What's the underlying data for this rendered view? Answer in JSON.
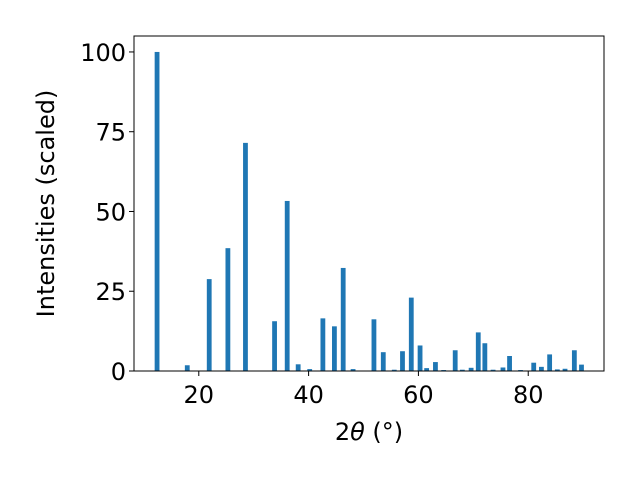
{
  "chart_data": {
    "type": "bar",
    "xlabel_prefix": "2",
    "xlabel_symbol": "θ",
    "xlabel_suffix": " (°)",
    "ylabel": "Intensities (scaled)",
    "xlim": [
      8.2,
      93.8
    ],
    "ylim": [
      0,
      105
    ],
    "xticks": [
      20,
      40,
      60,
      80
    ],
    "yticks": [
      0,
      25,
      50,
      75,
      100
    ],
    "bar_color": "#1f77b4",
    "grid": false,
    "x": [
      12.4,
      17.9,
      21.9,
      25.3,
      28.5,
      33.8,
      36.1,
      38.1,
      40.2,
      42.6,
      44.7,
      46.3,
      48.1,
      51.9,
      53.6,
      55.6,
      57.1,
      58.7,
      60.3,
      61.5,
      63.1,
      64.6,
      66.7,
      68.0,
      69.6,
      70.9,
      72.1,
      73.6,
      75.4,
      76.6,
      78.6,
      81.0,
      82.4,
      83.9,
      85.3,
      86.7,
      88.4,
      89.7
    ],
    "values": [
      100,
      1.8,
      28.8,
      38.5,
      71.5,
      15.6,
      53.3,
      2.1,
      0.6,
      16.5,
      14.0,
      32.3,
      0.6,
      16.2,
      5.9,
      0.4,
      6.2,
      23.0,
      8.0,
      0.9,
      2.8,
      0.3,
      6.5,
      0.4,
      1.0,
      12.1,
      8.7,
      0.4,
      1.1,
      4.7,
      0.3,
      2.6,
      1.3,
      5.2,
      0.5,
      0.7,
      6.5,
      2.0
    ]
  }
}
